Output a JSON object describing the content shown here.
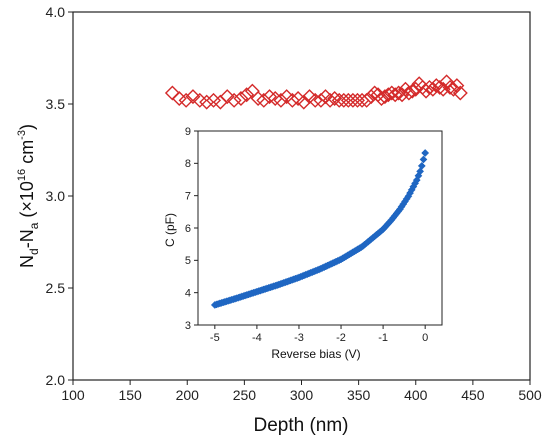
{
  "chart_data": [
    {
      "type": "scatter",
      "xlabel": "Depth (nm)",
      "ylabel": "N_d-N_a (×10^16 cm^-3)",
      "ylabel_parts": {
        "n": "N",
        "d": "d",
        "dash": "-",
        "n2": "N",
        "a": "a",
        "open": " (×10",
        "exp16": "16",
        "unit": " cm",
        "expm3": "-3",
        "close": ")"
      },
      "xlim": [
        100,
        500
      ],
      "ylim": [
        2.0,
        4.0
      ],
      "xticks": [
        100,
        150,
        200,
        250,
        300,
        350,
        400,
        450,
        500
      ],
      "yticks": [
        2.0,
        2.5,
        3.0,
        3.5,
        4.0
      ],
      "xtick_labels": [
        "100",
        "150",
        "200",
        "250",
        "300",
        "350",
        "400",
        "450",
        "500"
      ],
      "ytick_labels": [
        "2.0",
        "2.5",
        "3.0",
        "3.5",
        "4.0"
      ],
      "marker": "open-diamond",
      "color": "#d42a2a",
      "series": [
        {
          "x": [
            187,
            193,
            199,
            205,
            211,
            217,
            223,
            229,
            235,
            241,
            247,
            252,
            257,
            262,
            267,
            272,
            277,
            282,
            287,
            292,
            297,
            302,
            307,
            312,
            317,
            321,
            325,
            329,
            333,
            337,
            341,
            345,
            349,
            353,
            357,
            361,
            364,
            367,
            370,
            373,
            376,
            379,
            382,
            385,
            388,
            391,
            394,
            397,
            400,
            403,
            406,
            409,
            412,
            415,
            418,
            421,
            424,
            427,
            430,
            433,
            436,
            439
          ],
          "y": [
            3.56,
            3.53,
            3.52,
            3.54,
            3.52,
            3.51,
            3.52,
            3.51,
            3.54,
            3.52,
            3.53,
            3.55,
            3.57,
            3.53,
            3.52,
            3.54,
            3.53,
            3.52,
            3.54,
            3.52,
            3.53,
            3.51,
            3.54,
            3.52,
            3.52,
            3.54,
            3.52,
            3.53,
            3.52,
            3.52,
            3.52,
            3.52,
            3.52,
            3.52,
            3.52,
            3.54,
            3.56,
            3.55,
            3.53,
            3.54,
            3.55,
            3.56,
            3.55,
            3.56,
            3.55,
            3.58,
            3.56,
            3.57,
            3.58,
            3.61,
            3.59,
            3.57,
            3.59,
            3.58,
            3.6,
            3.59,
            3.58,
            3.62,
            3.59,
            3.58,
            3.6,
            3.56
          ]
        }
      ]
    },
    {
      "type": "scatter",
      "xlabel": "Reverse bias (V)",
      "ylabel": "C (pF)",
      "xlim": [
        -5.4,
        0.4
      ],
      "ylim": [
        3,
        9
      ],
      "xticks": [
        -5,
        -4,
        -3,
        -2,
        -1,
        0
      ],
      "yticks": [
        3,
        4,
        5,
        6,
        7,
        8,
        9
      ],
      "xtick_labels": [
        "-5",
        "-4",
        "-3",
        "-2",
        "-1",
        "0"
      ],
      "ytick_labels": [
        "3",
        "4",
        "5",
        "6",
        "7",
        "8",
        "9"
      ],
      "marker": "filled-diamond",
      "color": "#1f66c2",
      "curve": {
        "x": [
          -5.0,
          -4.5,
          -4.0,
          -3.5,
          -3.0,
          -2.5,
          -2.0,
          -1.5,
          -1.0,
          -0.8,
          -0.6,
          -0.4,
          -0.2,
          -0.1,
          0.0
        ],
        "y": [
          3.62,
          3.82,
          4.03,
          4.24,
          4.47,
          4.73,
          5.03,
          5.42,
          5.96,
          6.25,
          6.58,
          6.98,
          7.48,
          7.82,
          8.32
        ]
      }
    }
  ]
}
